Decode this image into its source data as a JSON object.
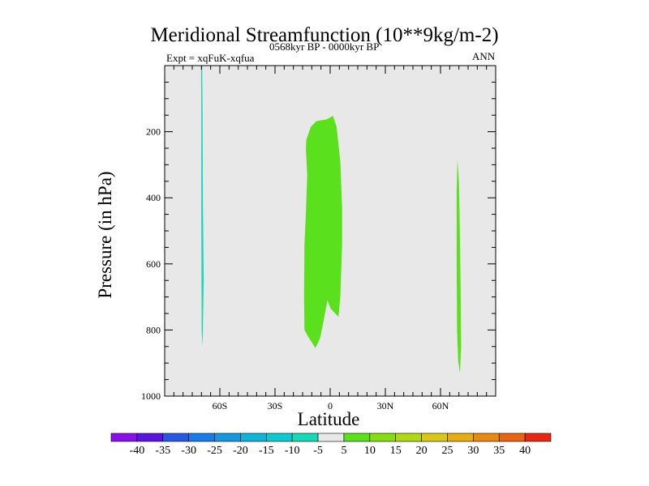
{
  "chart_data": {
    "type": "contour",
    "title": "Meridional Streamfunction (10**9kg/m-2)",
    "experiment_label": "Expt = xqFuK-xqfua",
    "period_label": "0568kyr BP - 0000kyr BP",
    "season_label": "ANN",
    "xlabel": "Latitude",
    "ylabel": "Pressure (in hPa)",
    "xlim": [
      -90,
      90
    ],
    "ylim": [
      1000,
      0
    ],
    "x_ticks": [
      {
        "value": -60,
        "label": "60S"
      },
      {
        "value": -30,
        "label": "30S"
      },
      {
        "value": 0,
        "label": "0"
      },
      {
        "value": 30,
        "label": "30N"
      },
      {
        "value": 60,
        "label": "60N"
      }
    ],
    "y_ticks": [
      {
        "value": 200,
        "label": "200"
      },
      {
        "value": 400,
        "label": "400"
      },
      {
        "value": 600,
        "label": "600"
      },
      {
        "value": 800,
        "label": "800"
      },
      {
        "value": 1000,
        "label": "1000"
      }
    ],
    "background_color": "#e8e8e8",
    "colorbar": {
      "boundaries": [
        "-40",
        "-35",
        "-30",
        "-25",
        "-20",
        "-15",
        "-10",
        "-5",
        "5",
        "10",
        "15",
        "20",
        "25",
        "30",
        "35",
        "40"
      ],
      "colors": [
        "#8a10e8",
        "#5a14dc",
        "#2858e0",
        "#1a7ae6",
        "#1898dc",
        "#10b4d8",
        "#10c8d0",
        "#18d8b8",
        "#e8e8e8",
        "#5ae01c",
        "#88dc14",
        "#b0d814",
        "#d8c81a",
        "#e6ac14",
        "#e68a14",
        "#e86414",
        "#e42814"
      ]
    },
    "regions": [
      {
        "name": "sh-high-lat-negative",
        "range": "-10 to -5",
        "color": "#18d8b8",
        "polygon": [
          [
            -70.2,
            0
          ],
          [
            -69.6,
            0
          ],
          [
            -69.4,
            140
          ],
          [
            -69.2,
            400
          ],
          [
            -68.8,
            650
          ],
          [
            -69.2,
            800
          ],
          [
            -69.4,
            850
          ],
          [
            -69.9,
            800
          ],
          [
            -70.1,
            450
          ],
          [
            -70.1,
            150
          ]
        ]
      },
      {
        "name": "tropical-positive",
        "range": "5 to 10",
        "color": "#5ae01c",
        "polygon": [
          [
            -10.5,
            185
          ],
          [
            -7.5,
            168
          ],
          [
            -2,
            163
          ],
          [
            1.5,
            152
          ],
          [
            3.5,
            185
          ],
          [
            5.5,
            290
          ],
          [
            6.5,
            430
          ],
          [
            6.5,
            540
          ],
          [
            5.5,
            700
          ],
          [
            4.5,
            760
          ],
          [
            0.2,
            735
          ],
          [
            -1.5,
            710
          ],
          [
            -3.5,
            770
          ],
          [
            -5.5,
            825
          ],
          [
            -8,
            855
          ],
          [
            -12,
            820
          ],
          [
            -14,
            800
          ],
          [
            -14.2,
            700
          ],
          [
            -14,
            540
          ],
          [
            -13.2,
            445
          ],
          [
            -12.5,
            330
          ],
          [
            -13.2,
            255
          ],
          [
            -13,
            225
          ]
        ]
      },
      {
        "name": "nh-high-lat-positive",
        "range": "5 to 10",
        "color": "#5ae01c",
        "polygon": [
          [
            69.2,
            285
          ],
          [
            70,
            355
          ],
          [
            70.6,
            520
          ],
          [
            71,
            700
          ],
          [
            71.2,
            850
          ],
          [
            70.6,
            930
          ],
          [
            69.6,
            895
          ],
          [
            69,
            800
          ],
          [
            68.8,
            600
          ],
          [
            68.8,
            380
          ]
        ]
      }
    ]
  }
}
